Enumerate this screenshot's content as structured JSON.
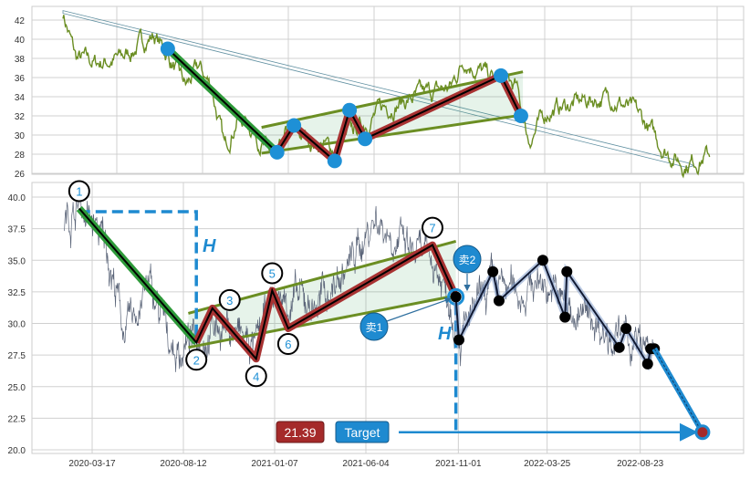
{
  "colors": {
    "top_price": "#6b8e23",
    "bottom_price": "#5a6478",
    "pattern_blue": "#1e90d6",
    "channel_green": "#6b8e23",
    "zig_red": "#a83232",
    "leg_green": "#2e9a3a",
    "target_red": "#a52a2a",
    "target_blue": "#1e8ad0",
    "grid": "#d0d0d0"
  },
  "chart_data": [
    {
      "type": "line",
      "panel": "top",
      "x_unit": "index 0-100",
      "ylim": [
        26,
        43
      ],
      "yticks": [
        26,
        28,
        30,
        32,
        34,
        36,
        38,
        40,
        42
      ],
      "grid": true,
      "price_waypoints": [
        [
          0,
          42.8
        ],
        [
          2,
          38
        ],
        [
          5,
          37.5
        ],
        [
          9,
          38
        ],
        [
          14,
          40.5
        ],
        [
          16,
          38.5
        ],
        [
          19,
          35
        ],
        [
          21,
          37
        ],
        [
          23,
          35
        ],
        [
          25,
          28.5
        ],
        [
          27,
          32
        ],
        [
          29,
          31
        ],
        [
          31,
          29
        ],
        [
          33,
          27
        ],
        [
          35,
          30.5
        ],
        [
          38,
          29.5
        ],
        [
          42,
          28.5
        ],
        [
          46,
          31
        ],
        [
          50,
          33
        ],
        [
          55,
          34
        ],
        [
          60,
          35
        ],
        [
          62,
          38
        ],
        [
          66,
          36
        ],
        [
          70,
          35
        ],
        [
          72,
          29.5
        ],
        [
          75,
          32.5
        ],
        [
          80,
          33.5
        ],
        [
          85,
          34
        ],
        [
          89,
          32
        ],
        [
          93,
          28.5
        ],
        [
          96,
          27
        ],
        [
          100,
          28
        ]
      ],
      "pattern_points": [
        [
          16.2,
          39
        ],
        [
          33.1,
          28.2
        ],
        [
          35.7,
          31
        ],
        [
          42.0,
          27.3
        ],
        [
          44.3,
          32.6
        ],
        [
          46.7,
          29.6
        ],
        [
          67.7,
          36.2
        ],
        [
          70.8,
          32
        ]
      ],
      "channel_upper": [
        [
          30.7,
          30.8
        ],
        [
          71.1,
          36.6
        ]
      ],
      "channel_lower": [
        [
          30.7,
          28.1
        ],
        [
          71.1,
          32.1
        ]
      ],
      "trend_arrow": [
        [
          0,
          42.8
        ],
        [
          97.5,
          26.8
        ]
      ]
    },
    {
      "type": "line",
      "panel": "bottom",
      "ylim": [
        19.5,
        41.5
      ],
      "yticks": [
        "20.0",
        "22.5",
        "25.0",
        "27.5",
        "30.0",
        "32.5",
        "35.0",
        "37.5",
        "40.0"
      ],
      "xticks": [
        "2020-03-17",
        "2020-08-12",
        "2021-01-07",
        "2021-06-04",
        "2021-11-01",
        "2022-03-25",
        "2022-08-23"
      ],
      "grid": true,
      "price_waypoints": [
        [
          "2020-02-01",
          38
        ],
        [
          "2020-02-25",
          39.5
        ],
        [
          "2020-04-10",
          36
        ],
        [
          "2020-05-10",
          29
        ],
        [
          "2020-06-15",
          33
        ],
        [
          "2020-08-01",
          27.5
        ],
        [
          "2020-09-02",
          29
        ],
        [
          "2020-10-15",
          30
        ],
        [
          "2020-12-08",
          28
        ],
        [
          "2021-01-03",
          32
        ],
        [
          "2021-03-15",
          31.5
        ],
        [
          "2021-05-01",
          34
        ],
        [
          "2021-06-20",
          38.5
        ],
        [
          "2021-08-15",
          35.5
        ],
        [
          "2021-09-20",
          35
        ],
        [
          "2021-10-28",
          31
        ],
        [
          "2021-11-05",
          29
        ],
        [
          "2021-12-27",
          33
        ],
        [
          "2022-02-10",
          32.5
        ],
        [
          "2022-03-18",
          33.5
        ],
        [
          "2022-05-01",
          31
        ],
        [
          "2022-06-15",
          30
        ],
        [
          "2022-07-20",
          29
        ],
        [
          "2022-09-15",
          27.5
        ]
      ],
      "pattern_points": [
        {
          "label": "1",
          "date": "2020-02-25",
          "value": 39.1
        },
        {
          "label": "2",
          "date": "2020-09-02",
          "value": 28.5
        },
        {
          "label": "3",
          "date": "2020-09-28",
          "value": 31.2
        },
        {
          "label": "4",
          "date": "2020-12-08",
          "value": 27.2
        },
        {
          "label": "5",
          "date": "2021-01-03",
          "value": 32.6
        },
        {
          "label": "6",
          "date": "2021-01-29",
          "value": 29.6
        },
        {
          "label": "7",
          "date": "2021-09-20",
          "value": 36.2
        },
        {
          "label": "",
          "date": "2021-10-28",
          "value": 32.1
        }
      ],
      "channel_upper": [
        [
          "2020-08-20",
          30.8
        ],
        [
          "2021-10-28",
          36.5
        ]
      ],
      "channel_lower": [
        [
          "2020-08-20",
          28.1
        ],
        [
          "2021-10-28",
          32.2
        ]
      ],
      "forecast_path": [
        [
          "2021-11-02",
          28.7
        ],
        [
          "2021-12-27",
          34.1
        ],
        [
          "2022-01-06",
          31.8
        ],
        [
          "2022-03-18",
          35.0
        ],
        [
          "2022-04-23",
          30.5
        ],
        [
          "2022-04-26",
          34.1
        ],
        [
          "2022-07-20",
          28.1
        ],
        [
          "2022-07-31",
          29.6
        ],
        [
          "2022-09-04",
          26.8
        ],
        [
          "2022-09-09",
          28.0
        ],
        [
          "2022-09-15",
          28.0
        ]
      ],
      "target": {
        "date": "2022-12-02",
        "value": 21.39
      },
      "annotations": {
        "height_label": "H",
        "sell1": "卖1",
        "sell2": "卖2",
        "target_value": "21.39",
        "target_label": "Target"
      }
    }
  ]
}
